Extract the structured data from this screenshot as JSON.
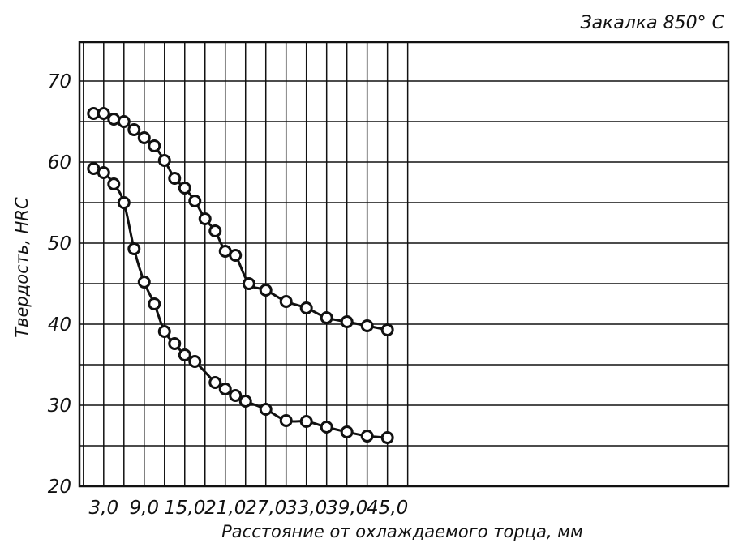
{
  "chart_data": {
    "type": "line",
    "title": "Закалка 850° С",
    "xlabel": "Расстояние от охлаждаемого торца, мм",
    "ylabel": "Твердость, HRC",
    "x_ticks": [
      "3,0",
      "9,0",
      "15,0",
      "21,0",
      "27,0",
      "33,0",
      "39,0",
      "45,0"
    ],
    "y_ticks": [
      "20",
      "30",
      "40",
      "50",
      "60",
      "70"
    ],
    "xlim": [
      0,
      48
    ],
    "ylim": [
      20,
      75
    ],
    "grid": true,
    "series": [
      {
        "x": [
          1.5,
          3.0,
          4.5,
          6.0,
          7.5,
          9.0,
          10.5,
          12.0,
          13.5,
          15.0,
          16.5,
          18.0,
          19.5,
          21.0,
          22.5,
          24.5,
          27.0,
          30.0,
          33.0,
          36.0,
          39.0,
          42.0,
          45.0
        ],
        "values": [
          66.0,
          66.0,
          65.3,
          65.0,
          64.0,
          63.0,
          62.0,
          60.2,
          58.0,
          56.8,
          55.2,
          53.0,
          51.5,
          49.0,
          48.5,
          45.0,
          44.2,
          42.8,
          42.0,
          40.8,
          40.3,
          39.8,
          39.3
        ]
      },
      {
        "x": [
          1.5,
          3.0,
          4.5,
          6.0,
          7.5,
          9.0,
          10.5,
          12.0,
          13.5,
          15.0,
          16.5,
          19.5,
          21.0,
          22.5,
          24.0,
          27.0,
          30.0,
          33.0,
          36.0,
          39.0,
          42.0,
          45.0
        ],
        "values": [
          59.2,
          58.7,
          57.3,
          55.0,
          49.3,
          45.2,
          42.5,
          39.1,
          37.6,
          36.2,
          35.4,
          32.8,
          32.0,
          31.2,
          30.5,
          29.5,
          28.1,
          28.0,
          27.3,
          26.7,
          26.2,
          26.0
        ]
      }
    ],
    "colors": {
      "line": "#111111",
      "marker_fill": "#ffffff",
      "grid": "#111111"
    }
  }
}
